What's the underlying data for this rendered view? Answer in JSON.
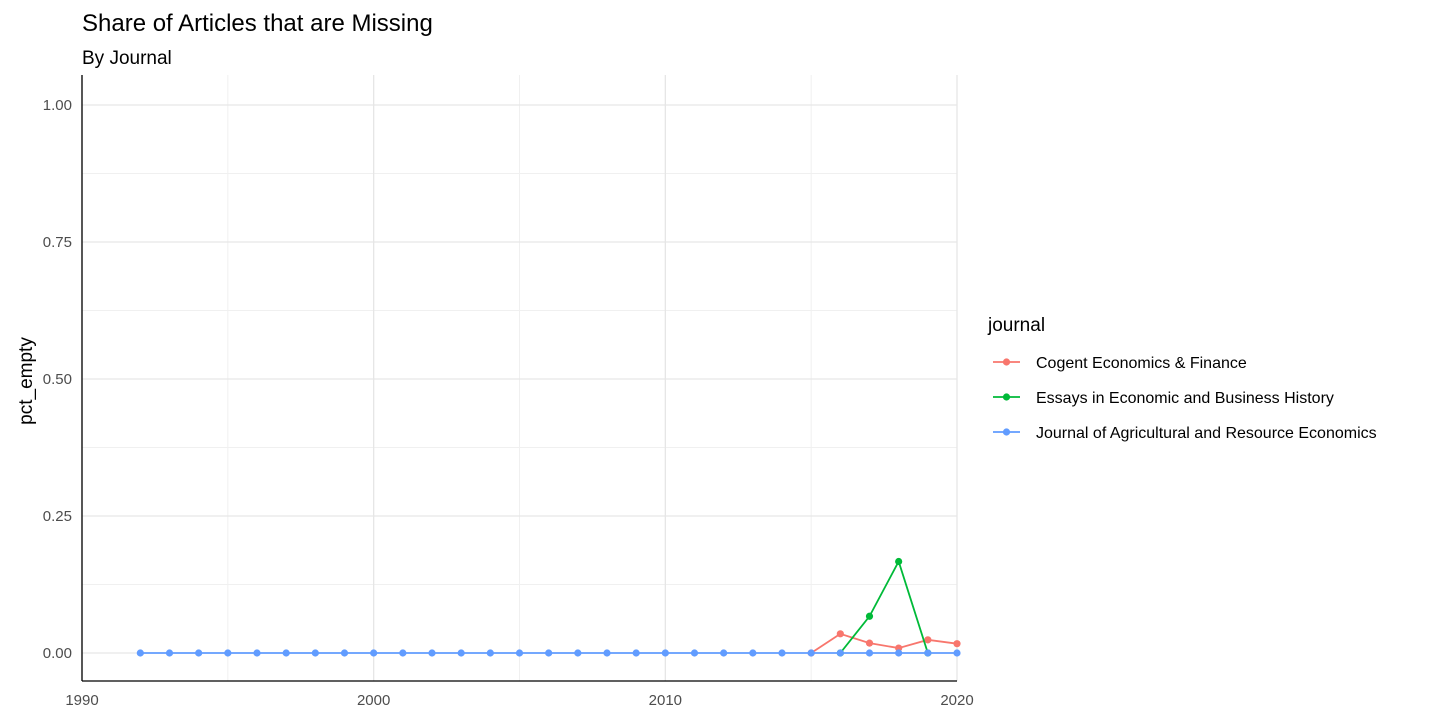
{
  "chart_data": {
    "type": "line",
    "title": "Share of Articles that are Missing",
    "subtitle": "By Journal",
    "xlabel": "",
    "ylabel": "pct_empty",
    "xlim": [
      1990,
      2020
    ],
    "ylim": [
      0,
      1
    ],
    "x_ticks": [
      "1990",
      "2000",
      "2010",
      "2020"
    ],
    "y_ticks": [
      "0.00",
      "0.25",
      "0.50",
      "0.75",
      "1.00"
    ],
    "grid": true,
    "legend": {
      "title": "journal",
      "position": "right"
    },
    "series": [
      {
        "name": "Cogent Economics & Finance",
        "color": "#F8766D",
        "x": [
          2015,
          2016,
          2017,
          2018,
          2019,
          2020
        ],
        "y": [
          0.0,
          0.035,
          0.018,
          0.009,
          0.024,
          0.017
        ]
      },
      {
        "name": "Essays in Economic and Business History",
        "color": "#00BA38",
        "x": [
          2016,
          2017,
          2018,
          2019
        ],
        "y": [
          0.0,
          0.067,
          0.167,
          0.0
        ]
      },
      {
        "name": "Journal of Agricultural and Resource Economics",
        "color": "#619CFF",
        "x": [
          1992,
          1993,
          1994,
          1995,
          1996,
          1997,
          1998,
          1999,
          2000,
          2001,
          2002,
          2003,
          2004,
          2005,
          2006,
          2007,
          2008,
          2009,
          2010,
          2011,
          2012,
          2013,
          2014,
          2015,
          2016,
          2017,
          2018,
          2019,
          2020
        ],
        "y": [
          0,
          0,
          0,
          0,
          0,
          0,
          0,
          0,
          0,
          0,
          0,
          0,
          0,
          0,
          0,
          0,
          0,
          0,
          0,
          0,
          0,
          0,
          0,
          0,
          0,
          0,
          0,
          0,
          0
        ]
      }
    ]
  }
}
